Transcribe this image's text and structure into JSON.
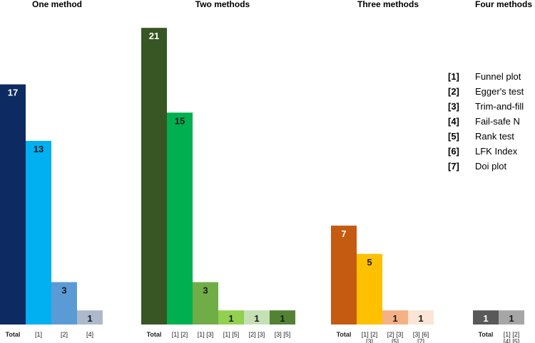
{
  "chart_data": {
    "type": "bar",
    "ylim": [
      0,
      22
    ],
    "groups": [
      {
        "title": "One method",
        "bars": [
          {
            "label": [
              "Total"
            ],
            "value": 17,
            "color": "#0d2b62",
            "text_color": "#ffffff",
            "bold_label": true
          },
          {
            "label": [
              "[1]"
            ],
            "value": 13,
            "color": "#00b0f0",
            "text_color": "#1a1a1a"
          },
          {
            "label": [
              "[2]"
            ],
            "value": 3,
            "color": "#5b9bd5",
            "text_color": "#1a1a1a"
          },
          {
            "label": [
              "[4]"
            ],
            "value": 1,
            "color": "#adb9ca",
            "text_color": "#1a1a1a"
          }
        ]
      },
      {
        "title": "Two methods",
        "bars": [
          {
            "label": [
              "Total"
            ],
            "value": 21,
            "color": "#375623",
            "text_color": "#ffffff",
            "bold_label": true
          },
          {
            "label": [
              "[1] [2]"
            ],
            "value": 15,
            "color": "#00b050",
            "text_color": "#1a1a1a"
          },
          {
            "label": [
              "[1] [3]"
            ],
            "value": 3,
            "color": "#70ad47",
            "text_color": "#1a1a1a"
          },
          {
            "label": [
              "[1] [5]"
            ],
            "value": 1,
            "color": "#92d050",
            "text_color": "#1a1a1a"
          },
          {
            "label": [
              "[2] [3]"
            ],
            "value": 1,
            "color": "#c5e0b4",
            "text_color": "#1a1a1a"
          },
          {
            "label": [
              "[3] [5]"
            ],
            "value": 1,
            "color": "#548235",
            "text_color": "#1a1a1a"
          }
        ]
      },
      {
        "title": "Three methods",
        "bars": [
          {
            "label": [
              "Total"
            ],
            "value": 7,
            "color": "#c55a11",
            "text_color": "#ffffff",
            "bold_label": true
          },
          {
            "label": [
              "[1] [2]",
              "[3]"
            ],
            "value": 5,
            "color": "#ffc000",
            "text_color": "#1a1a1a"
          },
          {
            "label": [
              "[2] [3]",
              "[5]"
            ],
            "value": 1,
            "color": "#f4b183",
            "text_color": "#1a1a1a"
          },
          {
            "label": [
              "[3] [6]",
              "[7]"
            ],
            "value": 1,
            "color": "#fbe5d6",
            "text_color": "#1a1a1a"
          }
        ]
      },
      {
        "title": "Four methods",
        "bars": [
          {
            "label": [
              "Total"
            ],
            "value": 1,
            "color": "#595959",
            "text_color": "#ffffff",
            "bold_label": true
          },
          {
            "label": [
              "[1] [2]",
              "[4] [5]"
            ],
            "value": 1,
            "color": "#a6a6a6",
            "text_color": "#1a1a1a"
          }
        ]
      }
    ],
    "legend": [
      {
        "key": "[1]",
        "label": "Funnel plot"
      },
      {
        "key": "[2]",
        "label": "Egger's test"
      },
      {
        "key": "[3]",
        "label": "Trim-and-fill"
      },
      {
        "key": "[4]",
        "label": "Fail-safe N"
      },
      {
        "key": "[5]",
        "label": "Rank test"
      },
      {
        "key": "[6]",
        "label": "LFK Index"
      },
      {
        "key": "[7]",
        "label": "Doi plot"
      }
    ],
    "legend_placement": "right"
  }
}
